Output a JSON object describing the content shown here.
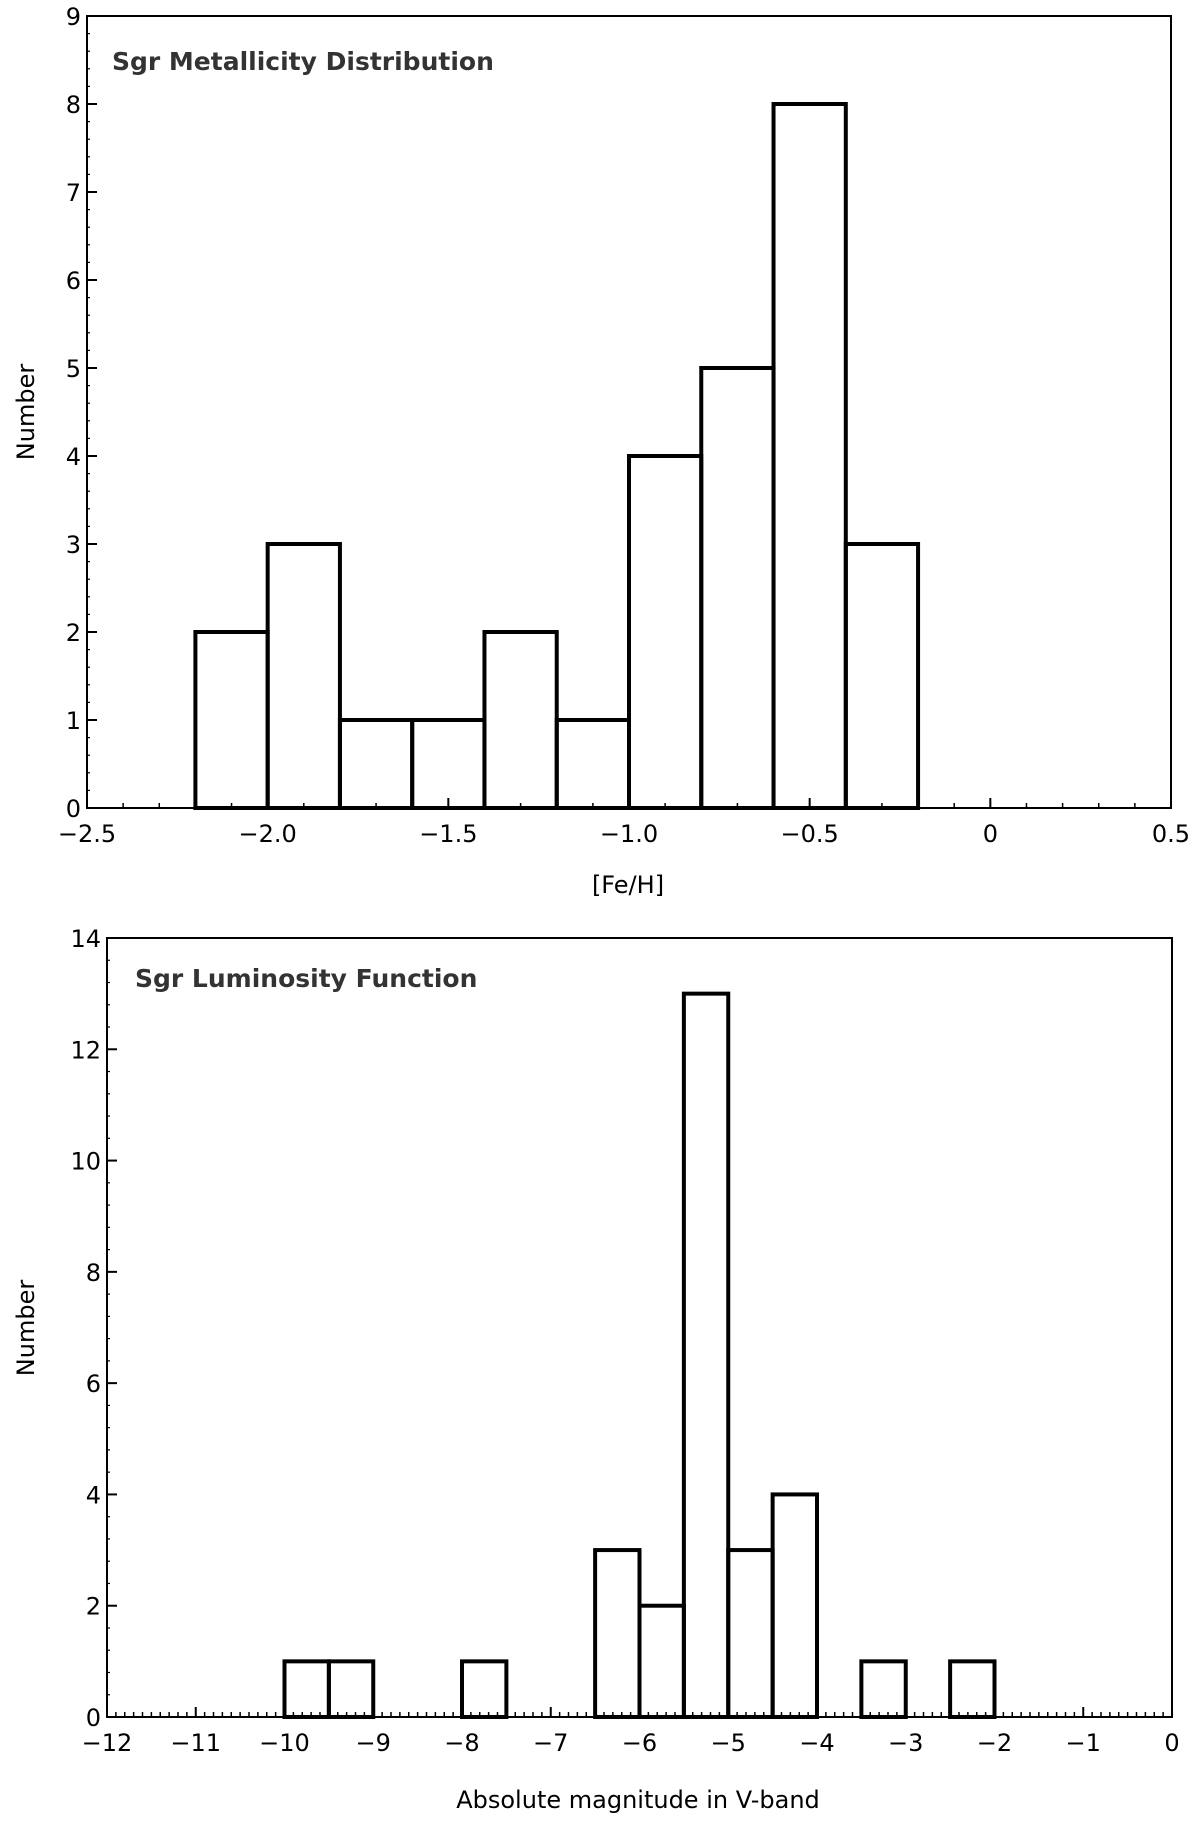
{
  "chart_data": [
    {
      "type": "bar",
      "title": "Sgr Metallicity Distribution",
      "xlabel": "[Fe/H]",
      "ylabel": "Number",
      "xlim": [
        -2.5,
        0.5
      ],
      "ylim": [
        0,
        9
      ],
      "xticks": [
        -2.5,
        -2.0,
        -1.5,
        -1.0,
        -0.5,
        0,
        0.5
      ],
      "xtick_labels": [
        "−2.5",
        "−2.0",
        "−1.5",
        "−1.0",
        "−0.5",
        "0",
        "0.5"
      ],
      "yticks": [
        0,
        1,
        2,
        3,
        4,
        5,
        6,
        7,
        8,
        9
      ],
      "bin_edges": [
        -2.2,
        -2.0,
        -1.8,
        -1.6,
        -1.4,
        -1.2,
        -1.0,
        -0.8,
        -0.6,
        -0.4,
        -0.2
      ],
      "values": [
        2,
        3,
        1,
        1,
        2,
        1,
        4,
        5,
        8,
        3
      ],
      "x_minor": 0.1,
      "histogram_style": "step",
      "color": "#000000"
    },
    {
      "type": "bar",
      "title": "Sgr Luminosity Function",
      "xlabel": "Absolute magnitude in V-band",
      "ylabel": "Number",
      "xlim": [
        -12,
        0
      ],
      "ylim": [
        0,
        14
      ],
      "xticks": [
        -12,
        -11,
        -10,
        -9,
        -8,
        -7,
        -6,
        -5,
        -4,
        -3,
        -2,
        -1,
        0
      ],
      "xtick_labels": [
        "−12",
        "−11",
        "−10",
        "−9",
        "−8",
        "−7",
        "−6",
        "−5",
        "−4",
        "−3",
        "−2",
        "−1",
        "0"
      ],
      "yticks": [
        0,
        2,
        4,
        6,
        8,
        10,
        12,
        14
      ],
      "bin_edges": [
        -10,
        -9.5,
        -9,
        -8.5,
        -8,
        -7.5,
        -7,
        -6.5,
        -6,
        -5.5,
        -5,
        -4.5,
        -4,
        -3.5,
        -3,
        -2.5,
        -2
      ],
      "values": [
        1,
        1,
        0,
        0,
        1,
        0,
        0,
        3,
        2,
        13,
        3,
        4,
        0,
        1,
        0,
        1
      ],
      "x_minor": 0.1,
      "histogram_style": "step",
      "color": "#000000"
    }
  ]
}
